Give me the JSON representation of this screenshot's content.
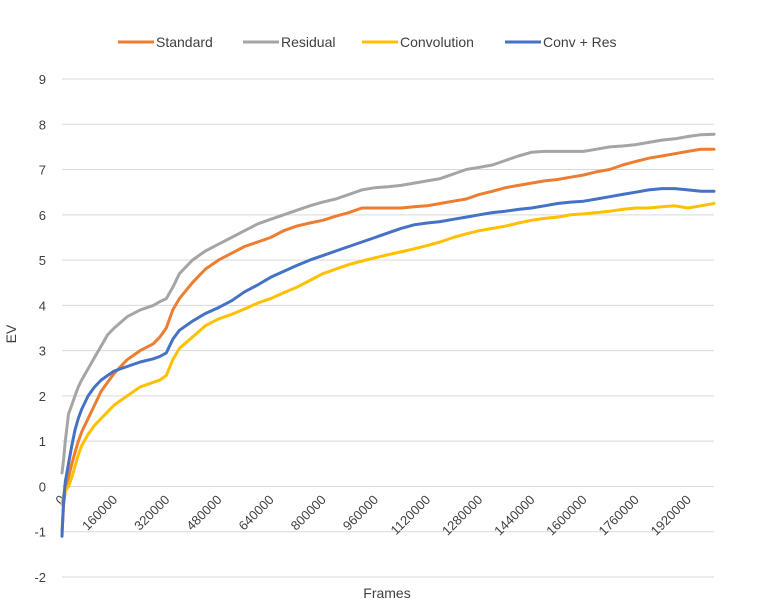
{
  "chart_data": {
    "type": "line",
    "title": "",
    "xlabel": "Frames",
    "ylabel": "EV",
    "xlim": [
      0,
      2000000
    ],
    "ylim": [
      -2,
      9
    ],
    "yticks": [
      -2,
      -1,
      0,
      1,
      2,
      3,
      4,
      5,
      6,
      7,
      8,
      9
    ],
    "xticks": [
      0,
      160000,
      320000,
      480000,
      640000,
      800000,
      960000,
      1120000,
      1280000,
      1440000,
      1600000,
      1760000,
      1920000
    ],
    "xtick_labels": [
      "0",
      "160000",
      "320000",
      "480000",
      "640000",
      "800000",
      "960000",
      "1120000",
      "1280000",
      "1440000",
      "1600000",
      "1760000",
      "1920000"
    ],
    "grid": "horizontal",
    "legend_position": "top",
    "series": [
      {
        "name": "Standard",
        "color": "#ED7D31",
        "x": [
          0,
          5000,
          10000,
          20000,
          30000,
          40000,
          50000,
          60000,
          80000,
          100000,
          120000,
          140000,
          160000,
          200000,
          240000,
          280000,
          300000,
          320000,
          340000,
          360000,
          400000,
          440000,
          480000,
          520000,
          560000,
          600000,
          640000,
          680000,
          720000,
          760000,
          800000,
          840000,
          880000,
          920000,
          960000,
          1000000,
          1040000,
          1080000,
          1120000,
          1160000,
          1200000,
          1240000,
          1280000,
          1320000,
          1360000,
          1400000,
          1440000,
          1480000,
          1520000,
          1560000,
          1600000,
          1640000,
          1680000,
          1720000,
          1760000,
          1800000,
          1840000,
          1880000,
          1920000,
          1960000,
          2000000
        ],
        "y": [
          -1.0,
          -0.4,
          -0.1,
          0.2,
          0.5,
          0.75,
          1.0,
          1.2,
          1.5,
          1.8,
          2.1,
          2.3,
          2.5,
          2.8,
          3.0,
          3.15,
          3.3,
          3.5,
          3.9,
          4.15,
          4.5,
          4.8,
          5.0,
          5.15,
          5.3,
          5.4,
          5.5,
          5.65,
          5.75,
          5.82,
          5.88,
          5.97,
          6.05,
          6.15,
          6.15,
          6.15,
          6.15,
          6.18,
          6.2,
          6.25,
          6.3,
          6.35,
          6.45,
          6.52,
          6.6,
          6.65,
          6.7,
          6.75,
          6.78,
          6.83,
          6.88,
          6.95,
          7.0,
          7.1,
          7.18,
          7.25,
          7.3,
          7.35,
          7.4,
          7.45,
          7.45
        ]
      },
      {
        "name": "Residual",
        "color": "#A5A5A5",
        "x": [
          0,
          5000,
          10000,
          20000,
          30000,
          40000,
          50000,
          60000,
          80000,
          100000,
          120000,
          140000,
          160000,
          200000,
          240000,
          280000,
          300000,
          320000,
          340000,
          360000,
          400000,
          440000,
          480000,
          520000,
          560000,
          600000,
          640000,
          680000,
          720000,
          760000,
          800000,
          840000,
          880000,
          920000,
          960000,
          1000000,
          1040000,
          1080000,
          1120000,
          1160000,
          1200000,
          1240000,
          1280000,
          1320000,
          1360000,
          1400000,
          1440000,
          1480000,
          1520000,
          1560000,
          1600000,
          1640000,
          1680000,
          1720000,
          1760000,
          1800000,
          1840000,
          1880000,
          1920000,
          1960000,
          2000000
        ],
        "y": [
          0.3,
          0.6,
          1.0,
          1.6,
          1.8,
          2.0,
          2.2,
          2.35,
          2.6,
          2.85,
          3.1,
          3.35,
          3.5,
          3.75,
          3.9,
          4.0,
          4.08,
          4.15,
          4.4,
          4.7,
          5.0,
          5.2,
          5.35,
          5.5,
          5.65,
          5.8,
          5.9,
          6.0,
          6.1,
          6.2,
          6.28,
          6.35,
          6.45,
          6.55,
          6.6,
          6.62,
          6.65,
          6.7,
          6.75,
          6.8,
          6.9,
          7.0,
          7.05,
          7.1,
          7.2,
          7.3,
          7.38,
          7.4,
          7.4,
          7.4,
          7.4,
          7.45,
          7.5,
          7.52,
          7.55,
          7.6,
          7.65,
          7.68,
          7.73,
          7.77,
          7.78
        ]
      },
      {
        "name": "Convolution",
        "color": "#FFC000",
        "x": [
          0,
          5000,
          10000,
          20000,
          30000,
          40000,
          50000,
          60000,
          80000,
          100000,
          120000,
          140000,
          160000,
          200000,
          240000,
          280000,
          300000,
          320000,
          340000,
          360000,
          400000,
          440000,
          480000,
          520000,
          560000,
          600000,
          640000,
          680000,
          720000,
          760000,
          800000,
          840000,
          880000,
          920000,
          960000,
          1000000,
          1040000,
          1080000,
          1120000,
          1160000,
          1200000,
          1240000,
          1280000,
          1320000,
          1360000,
          1400000,
          1440000,
          1480000,
          1520000,
          1560000,
          1600000,
          1640000,
          1680000,
          1720000,
          1760000,
          1800000,
          1840000,
          1880000,
          1920000,
          1960000,
          2000000
        ],
        "y": [
          -0.4,
          -0.2,
          -0.1,
          0.0,
          0.2,
          0.45,
          0.7,
          0.9,
          1.15,
          1.35,
          1.5,
          1.65,
          1.8,
          2.0,
          2.2,
          2.3,
          2.35,
          2.45,
          2.8,
          3.05,
          3.3,
          3.55,
          3.7,
          3.8,
          3.92,
          4.05,
          4.15,
          4.28,
          4.4,
          4.55,
          4.7,
          4.8,
          4.9,
          4.98,
          5.05,
          5.12,
          5.18,
          5.25,
          5.32,
          5.4,
          5.5,
          5.58,
          5.65,
          5.7,
          5.75,
          5.82,
          5.88,
          5.92,
          5.95,
          6.0,
          6.02,
          6.05,
          6.08,
          6.12,
          6.15,
          6.15,
          6.18,
          6.2,
          6.15,
          6.2,
          6.25
        ]
      },
      {
        "name": "Conv + Res",
        "color": "#4472C4",
        "x": [
          0,
          5000,
          10000,
          20000,
          30000,
          40000,
          50000,
          60000,
          80000,
          100000,
          120000,
          140000,
          160000,
          200000,
          240000,
          280000,
          300000,
          320000,
          340000,
          360000,
          400000,
          440000,
          480000,
          520000,
          560000,
          600000,
          640000,
          680000,
          720000,
          760000,
          800000,
          840000,
          880000,
          920000,
          960000,
          1000000,
          1040000,
          1080000,
          1120000,
          1160000,
          1200000,
          1240000,
          1280000,
          1320000,
          1360000,
          1400000,
          1440000,
          1480000,
          1520000,
          1560000,
          1600000,
          1640000,
          1680000,
          1720000,
          1760000,
          1800000,
          1840000,
          1880000,
          1920000,
          1960000,
          2000000
        ],
        "y": [
          -1.1,
          -0.3,
          0.1,
          0.5,
          0.9,
          1.25,
          1.5,
          1.7,
          2.0,
          2.2,
          2.35,
          2.45,
          2.55,
          2.65,
          2.75,
          2.82,
          2.87,
          2.95,
          3.25,
          3.45,
          3.65,
          3.82,
          3.95,
          4.1,
          4.3,
          4.45,
          4.62,
          4.75,
          4.88,
          5.0,
          5.1,
          5.2,
          5.3,
          5.4,
          5.5,
          5.6,
          5.7,
          5.78,
          5.82,
          5.85,
          5.9,
          5.95,
          6.0,
          6.05,
          6.08,
          6.12,
          6.15,
          6.2,
          6.25,
          6.28,
          6.3,
          6.35,
          6.4,
          6.45,
          6.5,
          6.55,
          6.58,
          6.58,
          6.55,
          6.52,
          6.52
        ]
      }
    ]
  }
}
